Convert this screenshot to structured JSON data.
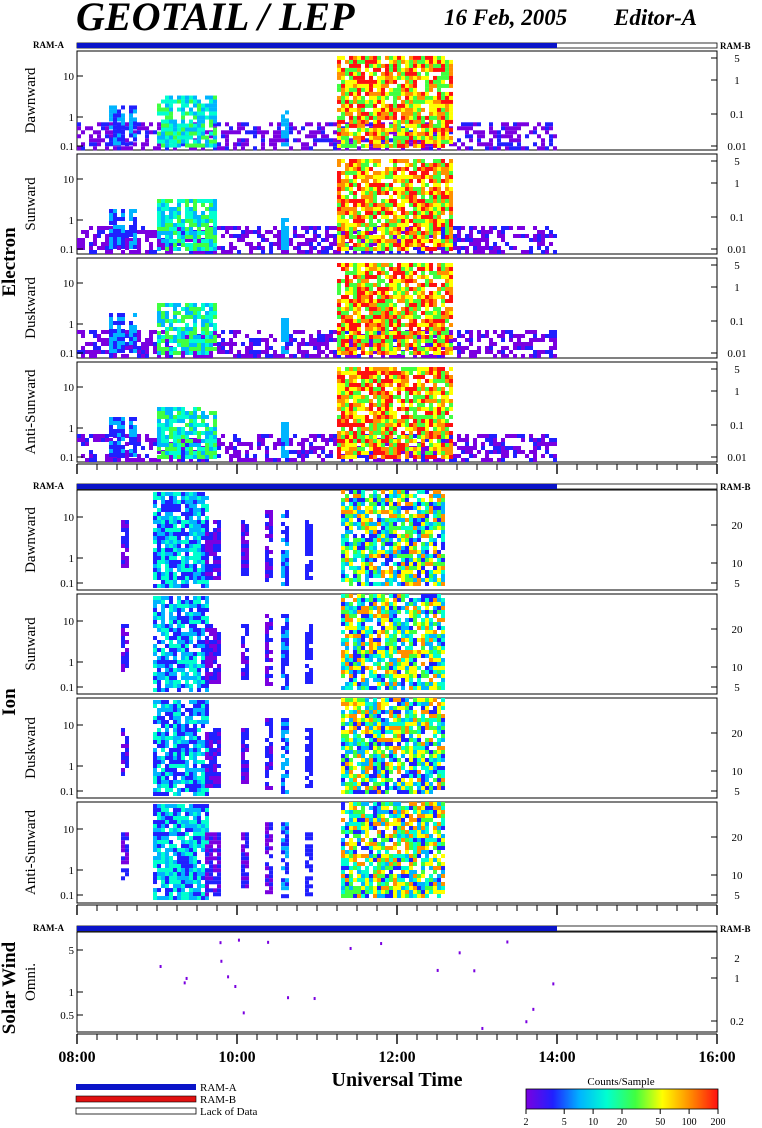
{
  "header": {
    "title": "GEOTAIL / LEP",
    "date": "16 Feb, 2005",
    "editor": "Editor-A"
  },
  "chart_data": {
    "type": "heatmap",
    "x_axis": {
      "label": "Universal Time",
      "ticks": [
        "08:00",
        "10:00",
        "12:00",
        "14:00",
        "16:00"
      ],
      "range_hours": [
        8,
        16
      ]
    },
    "data_coverage_hours": [
      8,
      14
    ],
    "mode_bar": {
      "left": "RAM-A",
      "right": "RAM-B",
      "ram_a_until_hour": 14
    },
    "groups": [
      {
        "name": "Electron",
        "left_ticks": [
          "10",
          "1",
          "0.1"
        ],
        "right_ticks": [
          "5",
          "1",
          "0.1",
          "0.01"
        ],
        "panels": [
          {
            "label": "Dawnward"
          },
          {
            "label": "Sunward"
          },
          {
            "label": "Duskward"
          },
          {
            "label": "Anti-Sunward"
          }
        ]
      },
      {
        "name": "Ion",
        "left_ticks": [
          "10",
          "1",
          "0.1"
        ],
        "right_ticks": [
          "20",
          "10",
          "5"
        ],
        "panels": [
          {
            "label": "Dawnward"
          },
          {
            "label": "Sunward"
          },
          {
            "label": "Duskward"
          },
          {
            "label": "Anti-Sunward"
          }
        ]
      },
      {
        "name": "Solar Wind",
        "left_ticks": [
          "5",
          "1",
          "0.5"
        ],
        "right_ticks": [
          "2",
          "1",
          "0.2"
        ],
        "panels": [
          {
            "label": "Omni."
          }
        ]
      }
    ],
    "legend": {
      "items": [
        {
          "label": "RAM-A",
          "color": "#0a14c8"
        },
        {
          "label": "RAM-B",
          "color": "#e01010"
        },
        {
          "label": "Lack of Data",
          "color": "#ffffff"
        }
      ]
    },
    "colorbar": {
      "title": "Counts/Sample",
      "ticks": [
        "2",
        "5",
        "10",
        "20",
        "50",
        "100",
        "200"
      ],
      "log_range": [
        2,
        200
      ],
      "colors": [
        "#7a00e0",
        "#2020ff",
        "#00b4ff",
        "#00ffd0",
        "#40ff40",
        "#ffff00",
        "#ff9000",
        "#ff1010"
      ]
    }
  }
}
